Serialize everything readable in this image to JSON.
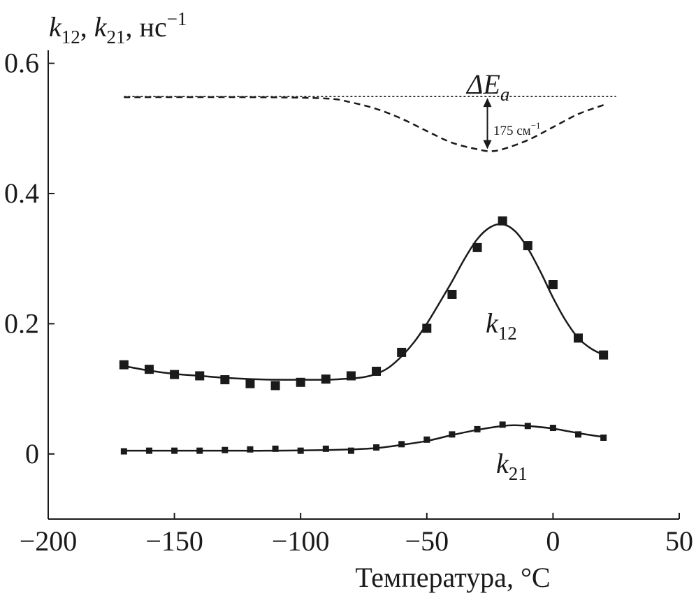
{
  "chart_data": {
    "type": "line",
    "y_axis_title": {
      "k1": "k",
      "s1": "12",
      "sep": ", ",
      "k2": "k",
      "s2": "21",
      "unit": ", нс",
      "exp": "−1"
    },
    "xlabel": "Температура, °C",
    "xlim": [
      -200,
      50
    ],
    "ylim": [
      -0.1,
      0.62
    ],
    "x_ticks": [
      -200,
      -150,
      -100,
      -50,
      0,
      50
    ],
    "x_tick_labels": [
      "−200",
      "−150",
      "−100",
      "−50",
      "0",
      "50"
    ],
    "y_ticks": [
      0,
      0.2,
      0.4,
      0.6
    ],
    "y_tick_labels": [
      "0",
      "0.2",
      "0.4",
      "0.6"
    ],
    "grid": false,
    "series": [
      {
        "name": "k12",
        "label": {
          "k": "k",
          "sub": "12"
        },
        "marker": "square",
        "x": [
          -170,
          -160,
          -150,
          -140,
          -130,
          -120,
          -110,
          -100,
          -90,
          -80,
          -70,
          -60,
          -50,
          -40,
          -30,
          -20,
          -10,
          0,
          10,
          20
        ],
        "y": [
          0.137,
          0.13,
          0.122,
          0.12,
          0.114,
          0.108,
          0.105,
          0.11,
          0.115,
          0.12,
          0.127,
          0.156,
          0.193,
          0.245,
          0.317,
          0.358,
          0.32,
          0.26,
          0.178,
          0.152
        ],
        "fit": {
          "x": [
            -170,
            -160,
            -150,
            -140,
            -130,
            -120,
            -110,
            -100,
            -90,
            -80,
            -75,
            -70,
            -65,
            -60,
            -55,
            -50,
            -45,
            -40,
            -35,
            -30,
            -25,
            -20,
            -15,
            -10,
            -5,
            0,
            5,
            10,
            15,
            20
          ],
          "y": [
            0.135,
            0.128,
            0.123,
            0.12,
            0.117,
            0.115,
            0.114,
            0.114,
            0.114,
            0.116,
            0.118,
            0.123,
            0.133,
            0.15,
            0.172,
            0.2,
            0.232,
            0.265,
            0.3,
            0.33,
            0.348,
            0.353,
            0.342,
            0.316,
            0.28,
            0.24,
            0.205,
            0.178,
            0.162,
            0.152
          ]
        }
      },
      {
        "name": "k21",
        "label": {
          "k": "k",
          "sub": "21"
        },
        "marker": "square",
        "x": [
          -170,
          -160,
          -150,
          -140,
          -130,
          -120,
          -110,
          -100,
          -90,
          -80,
          -70,
          -60,
          -50,
          -40,
          -30,
          -20,
          -10,
          0,
          10,
          20
        ],
        "y": [
          0.004,
          0.005,
          0.005,
          0.005,
          0.006,
          0.007,
          0.008,
          0.005,
          0.008,
          0.005,
          0.01,
          0.015,
          0.022,
          0.03,
          0.038,
          0.045,
          0.043,
          0.04,
          0.03,
          0.025
        ],
        "fit": {
          "x": [
            -170,
            -150,
            -130,
            -110,
            -90,
            -80,
            -70,
            -60,
            -50,
            -40,
            -30,
            -20,
            -15,
            -10,
            0,
            10,
            20
          ],
          "y": [
            0.005,
            0.005,
            0.005,
            0.005,
            0.006,
            0.007,
            0.009,
            0.014,
            0.02,
            0.029,
            0.037,
            0.043,
            0.044,
            0.043,
            0.039,
            0.032,
            0.026
          ]
        }
      },
      {
        "name": "ΔEa",
        "label": {
          "prefix": "ΔE",
          "sub": "a"
        },
        "style": "dashed",
        "x": [
          -170,
          -120,
          -90,
          -80,
          -70,
          -60,
          -50,
          -40,
          -30,
          -25,
          -20,
          -10,
          0,
          10,
          20
        ],
        "y": [
          0.548,
          0.548,
          0.546,
          0.54,
          0.53,
          0.515,
          0.496,
          0.478,
          0.468,
          0.465,
          0.468,
          0.482,
          0.502,
          0.522,
          0.536
        ]
      },
      {
        "name": "reference",
        "style": "dotted",
        "x": [
          -170,
          25
        ],
        "y": [
          0.549,
          0.549
        ]
      }
    ],
    "annotations": [
      {
        "text": "175 см",
        "exp": "−1",
        "arrow_x": -26,
        "y_top": 0.549,
        "y_bottom": 0.465
      }
    ]
  }
}
